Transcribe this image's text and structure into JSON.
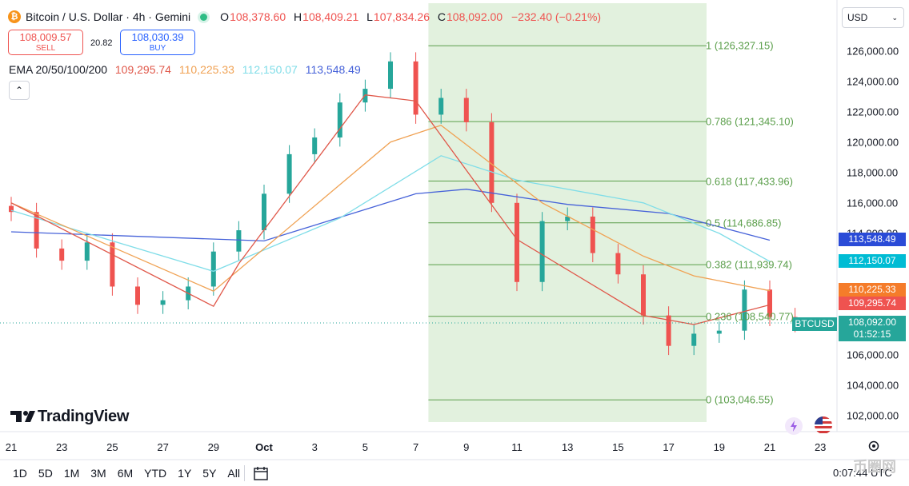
{
  "header": {
    "symbol_title": "Bitcoin / U.S. Dollar · 4h · Gemini",
    "coin_glyph": "₿",
    "ohlc": {
      "open_label": "O",
      "open": "108,378.60",
      "high_label": "H",
      "high": "108,409.21",
      "low_label": "L",
      "low": "107,834.26",
      "close_label": "C",
      "close": "108,092.00",
      "change": "−232.40 (−0.21%)"
    }
  },
  "trade": {
    "sell_price": "108,009.57",
    "sell_label": "SELL",
    "spread": "20.82",
    "buy_price": "108,030.39",
    "buy_label": "BUY"
  },
  "ema_legend": {
    "label": "EMA 20/50/100/200",
    "values": [
      "109,295.74",
      "110,225.33",
      "112,150.07",
      "113,548.49"
    ]
  },
  "collapse_glyph": "⌃",
  "currency_select": {
    "value": "USD",
    "chevron": "⌄"
  },
  "price_axis_labels": [
    "126,000.00",
    "124,000.00",
    "122,000.00",
    "120,000.00",
    "118,000.00",
    "116,000.00",
    "114,000.00",
    "106,000.00",
    "104,000.00",
    "102,000.00"
  ],
  "price_tags": {
    "ema200": "113,548.49",
    "ema100": "112,150.07",
    "ema50": "110,225.33",
    "ema20": "109,295.74",
    "last": "108,092.00",
    "countdown": "01:52:15",
    "symbol_tag": "BTCUSD"
  },
  "time_axis_labels": [
    "21",
    "23",
    "25",
    "27",
    "29",
    "Oct",
    "3",
    "5",
    "7",
    "9",
    "11",
    "13",
    "15",
    "17",
    "19",
    "21",
    "23"
  ],
  "fib_labels": [
    "1 (126,327.15)",
    "0.786 (121,345.10)",
    "0.618 (117,433.96)",
    "0.5 (114,686.85)",
    "0.382 (111,939.74)",
    "0.236 (108,540.77)",
    "0 (103,046.55)"
  ],
  "toolbar": {
    "ranges": [
      "1D",
      "5D",
      "1M",
      "3M",
      "6M",
      "YTD",
      "1Y",
      "5Y",
      "All"
    ]
  },
  "clock": "0:07:44 UTC",
  "brand": "TradingView",
  "watermark": "币圈网",
  "colors": {
    "up": "#26a69a",
    "down": "#ef5350",
    "ema20": "#e0584a",
    "ema50": "#f0a254",
    "ema100": "#7fdde8",
    "ema200": "#4662d9",
    "fib_zone": "#e2f1de",
    "fib_line": "#5a9e4a"
  },
  "chart_data": {
    "type": "candlestick",
    "interval": "4h",
    "ylim": [
      101000,
      127000
    ],
    "x_range": [
      "Sep 21",
      "Oct 23"
    ],
    "candles": [
      {
        "date": "09-21",
        "open": 115800,
        "close": 115400
      },
      {
        "date": "09-22",
        "open": 115400,
        "close": 113000
      },
      {
        "date": "09-23",
        "open": 113000,
        "close": 112200
      },
      {
        "date": "09-24",
        "open": 112200,
        "close": 113400
      },
      {
        "date": "09-25",
        "open": 113400,
        "close": 110500
      },
      {
        "date": "09-26",
        "open": 110500,
        "close": 109300
      },
      {
        "date": "09-27",
        "open": 109300,
        "close": 109600
      },
      {
        "date": "09-28",
        "open": 109600,
        "close": 110500
      },
      {
        "date": "09-29",
        "open": 110500,
        "close": 112800
      },
      {
        "date": "09-30",
        "open": 112800,
        "close": 114200
      },
      {
        "date": "10-01",
        "open": 114200,
        "close": 116600
      },
      {
        "date": "10-02",
        "open": 116600,
        "close": 119200
      },
      {
        "date": "10-03",
        "open": 119200,
        "close": 120300
      },
      {
        "date": "10-04",
        "open": 120300,
        "close": 122600
      },
      {
        "date": "10-05",
        "open": 122600,
        "close": 123500
      },
      {
        "date": "10-06",
        "open": 123500,
        "close": 125300
      },
      {
        "date": "10-07",
        "open": 125300,
        "close": 121800
      },
      {
        "date": "10-08",
        "open": 121800,
        "close": 122900
      },
      {
        "date": "10-09",
        "open": 122900,
        "close": 121300
      },
      {
        "date": "10-10",
        "open": 121300,
        "close": 116000
      },
      {
        "date": "10-11",
        "open": 116000,
        "close": 110800
      },
      {
        "date": "10-12",
        "open": 110800,
        "close": 114800
      },
      {
        "date": "10-13",
        "open": 114800,
        "close": 115100
      },
      {
        "date": "10-14",
        "open": 115100,
        "close": 112700
      },
      {
        "date": "10-15",
        "open": 112700,
        "close": 111300
      },
      {
        "date": "10-16",
        "open": 111300,
        "close": 108600
      },
      {
        "date": "10-17",
        "open": 108600,
        "close": 106600
      },
      {
        "date": "10-18",
        "open": 106600,
        "close": 107400
      },
      {
        "date": "10-19",
        "open": 107400,
        "close": 107600
      },
      {
        "date": "10-20",
        "open": 107600,
        "close": 110300
      },
      {
        "date": "10-21",
        "open": 110300,
        "close": 108500
      },
      {
        "date": "10-22",
        "open": 108500,
        "close": 108092
      }
    ],
    "ema20": [
      [
        0,
        116000
      ],
      [
        8,
        109200
      ],
      [
        9,
        112000
      ],
      [
        14,
        123100
      ],
      [
        16,
        122700
      ],
      [
        20,
        113600
      ],
      [
        25,
        108600
      ],
      [
        27,
        108000
      ],
      [
        30,
        109295
      ]
    ],
    "ema50": [
      [
        0,
        116000
      ],
      [
        8,
        110200
      ],
      [
        15,
        120000
      ],
      [
        17,
        121100
      ],
      [
        21,
        116000
      ],
      [
        25,
        112500
      ],
      [
        27,
        111200
      ],
      [
        30,
        110225
      ]
    ],
    "ema100": [
      [
        0,
        115500
      ],
      [
        8,
        111500
      ],
      [
        13,
        115000
      ],
      [
        17,
        119100
      ],
      [
        20,
        117500
      ],
      [
        25,
        116000
      ],
      [
        28,
        114000
      ],
      [
        30,
        112150
      ]
    ],
    "ema200": [
      [
        0,
        114100
      ],
      [
        10,
        113500
      ],
      [
        16,
        116600
      ],
      [
        18,
        116900
      ],
      [
        22,
        115900
      ],
      [
        26,
        115300
      ],
      [
        30,
        113548
      ]
    ],
    "fib_levels": [
      {
        "ratio": "1",
        "price": 126327.15
      },
      {
        "ratio": "0.786",
        "price": 121345.1
      },
      {
        "ratio": "0.618",
        "price": 117433.96
      },
      {
        "ratio": "0.5",
        "price": 114686.85
      },
      {
        "ratio": "0.382",
        "price": 111939.74
      },
      {
        "ratio": "0.236",
        "price": 108540.77
      },
      {
        "ratio": "0",
        "price": 103046.55
      }
    ],
    "fib_zone_days": [
      16.5,
      27.5
    ],
    "last_price": 108092.0
  }
}
